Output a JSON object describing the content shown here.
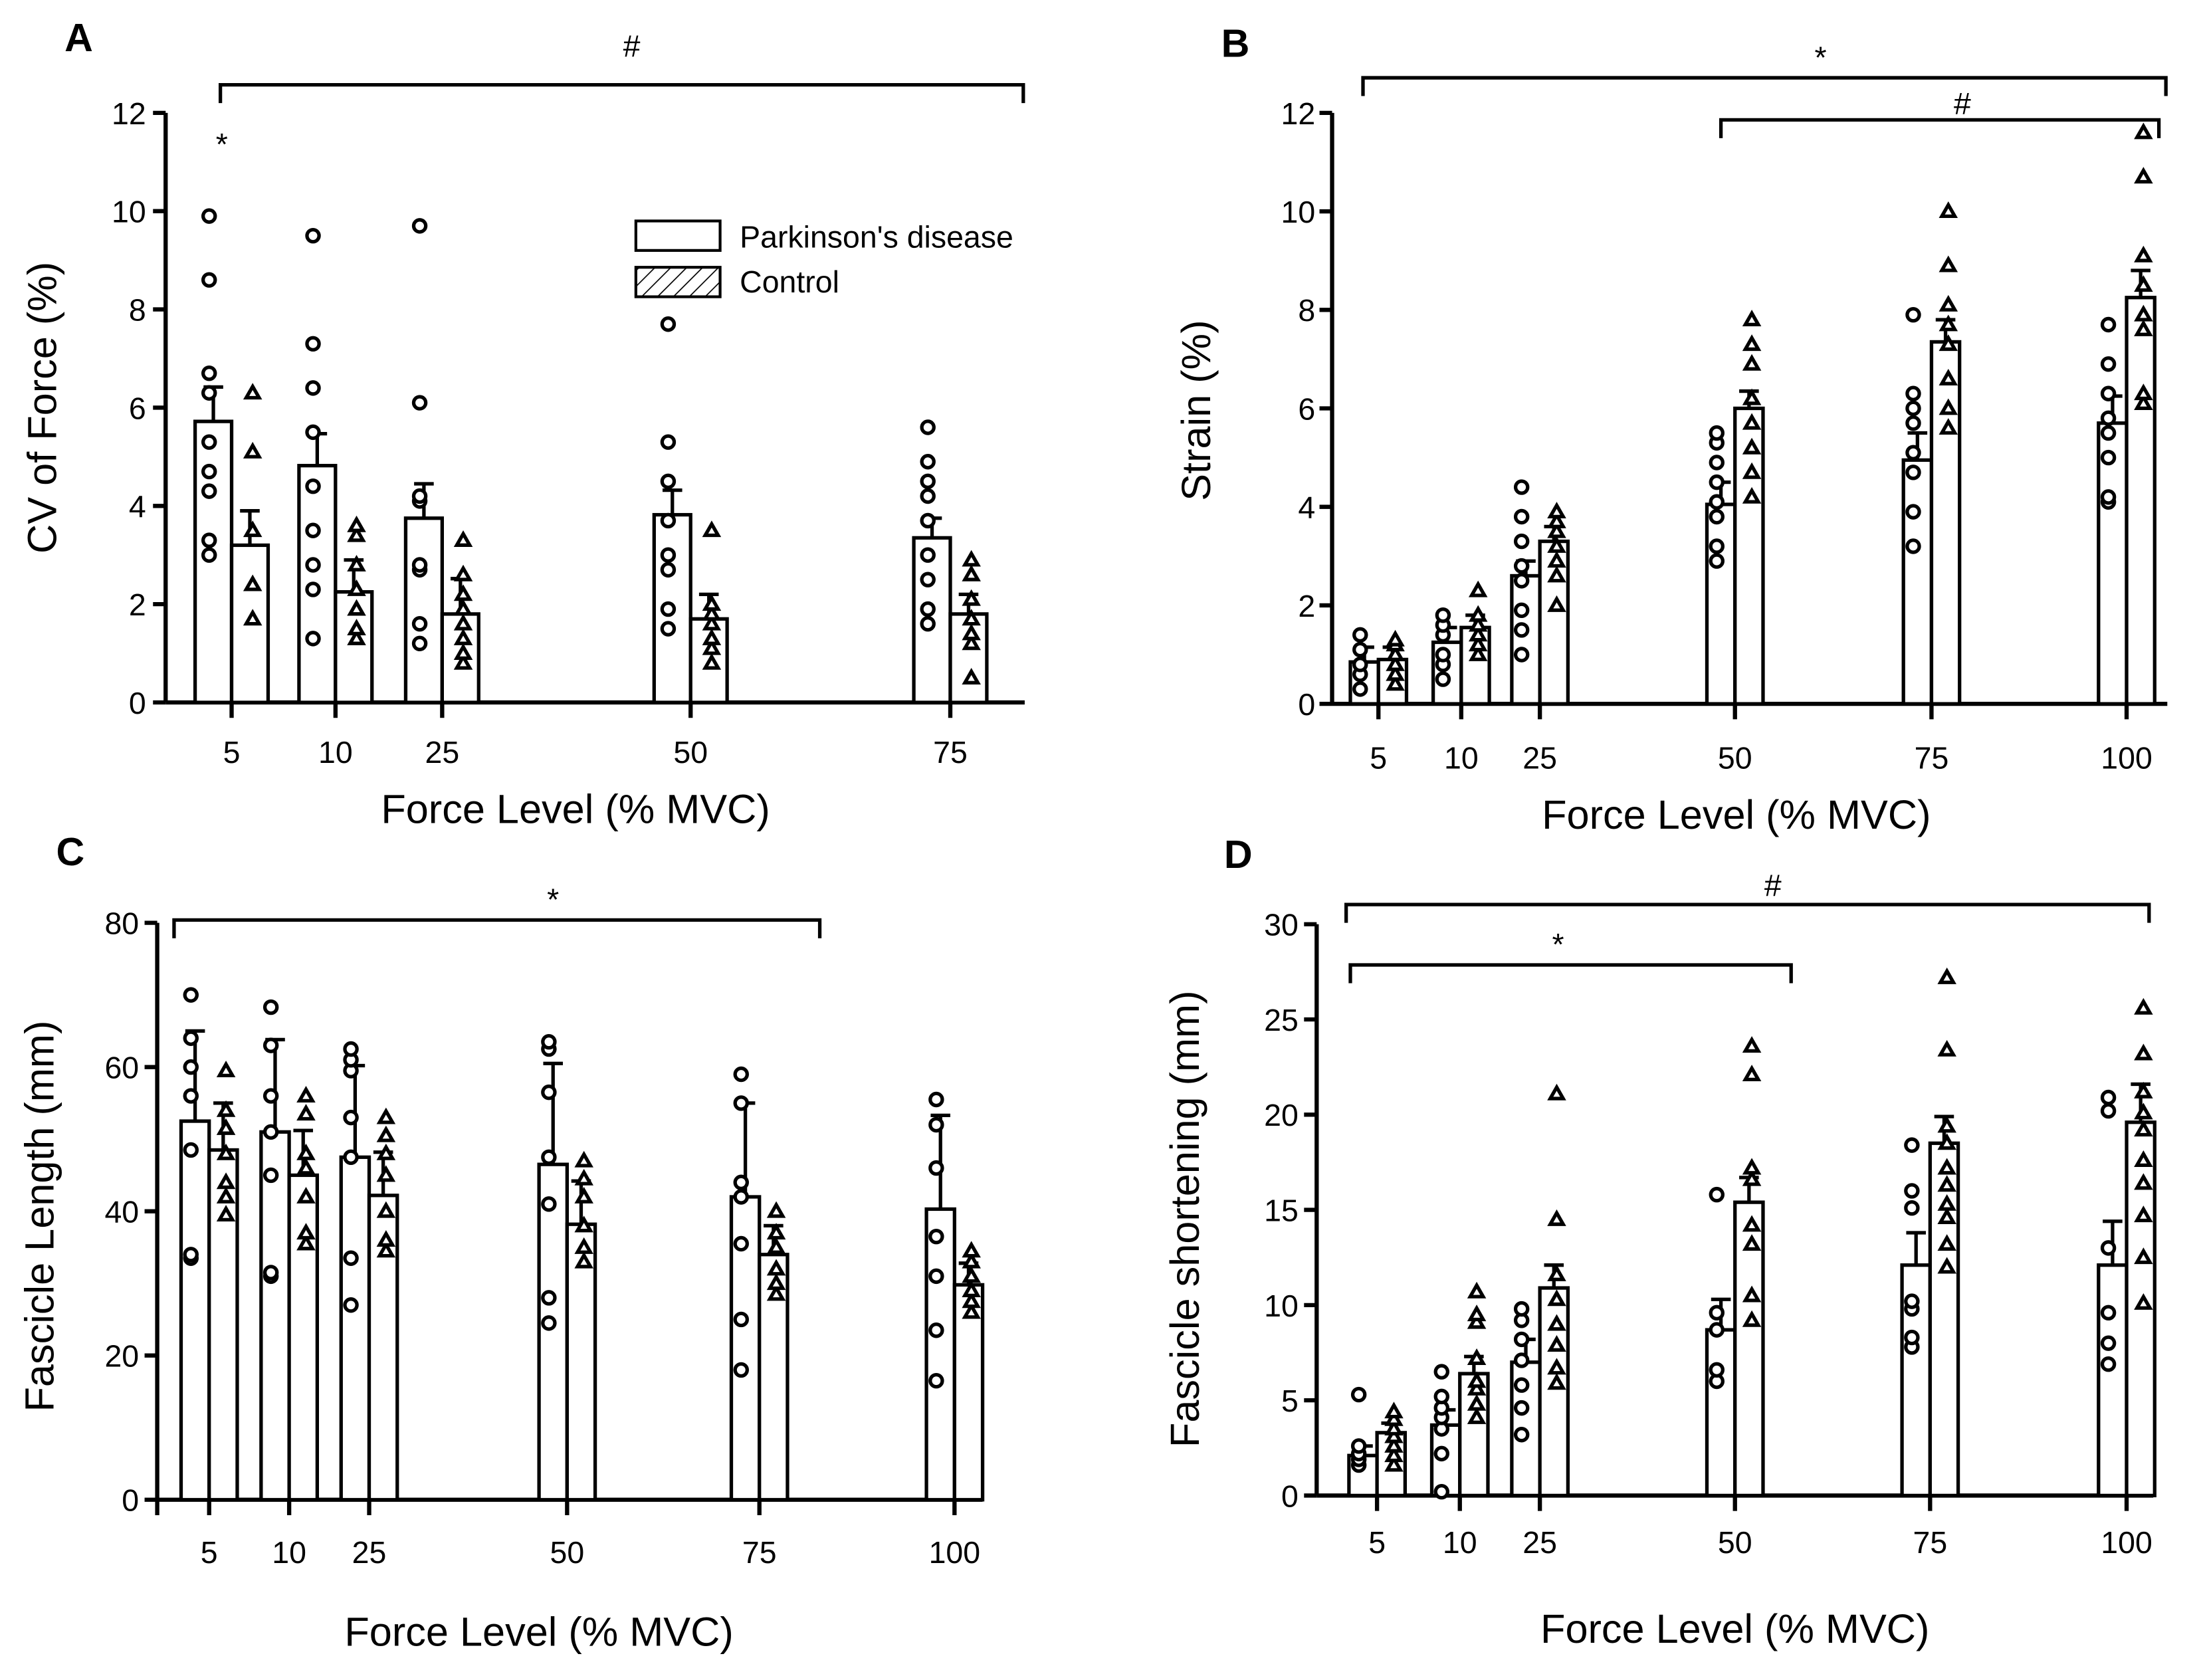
{
  "figure": {
    "xlabel": "Force Level (% MVC)"
  },
  "legend": {
    "pd": "Parkinson's disease",
    "control": "Control"
  },
  "chart_data": [
    {
      "type": "bar",
      "panel": "A",
      "ylabel": "CV of Force (%)",
      "xlabel": "Force Level (% MVC)",
      "ylim": [
        0,
        12
      ],
      "yticks": [
        0,
        2,
        4,
        6,
        8,
        10,
        12
      ],
      "categories": [
        "5",
        "10",
        "25",
        "50",
        "75"
      ],
      "series": [
        {
          "name": "Parkinson's disease",
          "values": [
            5.72,
            4.82,
            3.75,
            3.82,
            3.35
          ],
          "errors": [
            0.7,
            0.65,
            0.7,
            0.5,
            0.4
          ],
          "points": [
            [
              3.0,
              3.3,
              4.3,
              4.7,
              5.3,
              6.3,
              6.7,
              8.6,
              9.9
            ],
            [
              1.3,
              2.3,
              2.8,
              3.5,
              4.4,
              5.5,
              6.4,
              7.3,
              9.5
            ],
            [
              1.2,
              1.6,
              2.7,
              2.8,
              4.1,
              4.2,
              6.1,
              9.7
            ],
            [
              1.5,
              1.9,
              2.7,
              3.0,
              3.7,
              4.5,
              5.3,
              7.7
            ],
            [
              1.6,
              1.9,
              2.5,
              3.0,
              3.7,
              4.2,
              4.5,
              4.9,
              5.6
            ]
          ]
        },
        {
          "name": "Control",
          "values": [
            3.2,
            2.25,
            1.8,
            1.7,
            1.8
          ],
          "errors": [
            0.7,
            0.65,
            0.72,
            0.5,
            0.4
          ],
          "points": [
            [
              1.7,
              2.4,
              3.5,
              5.1,
              6.3
            ],
            [
              1.3,
              1.5,
              1.9,
              2.3,
              2.8,
              3.4,
              3.6
            ],
            [
              0.8,
              1.0,
              1.3,
              1.6,
              1.9,
              2.2,
              2.6,
              3.3
            ],
            [
              0.8,
              1.1,
              1.3,
              1.6,
              1.8,
              2.0,
              3.5
            ],
            [
              0.5,
              1.2,
              1.4,
              1.7,
              2.1,
              2.6,
              2.9
            ]
          ]
        }
      ],
      "annotations": [
        {
          "text": "#",
          "from": "5",
          "to": "75"
        },
        {
          "text": "*",
          "over": "5"
        }
      ]
    },
    {
      "type": "bar",
      "panel": "B",
      "ylabel": "Strain (%)",
      "xlabel": "Force Level (% MVC)",
      "ylim": [
        0,
        12
      ],
      "yticks": [
        0,
        2,
        4,
        6,
        8,
        10,
        12
      ],
      "categories": [
        "5",
        "10",
        "25",
        "50",
        "75",
        "100"
      ],
      "series": [
        {
          "name": "Parkinson's disease",
          "values": [
            0.85,
            1.25,
            2.6,
            4.05,
            4.95,
            5.7
          ],
          "errors": [
            0.3,
            0.3,
            0.3,
            0.45,
            0.55,
            0.55
          ],
          "points": [
            [
              0.3,
              0.6,
              0.8,
              1.1,
              1.4
            ],
            [
              0.5,
              0.8,
              1.0,
              1.4,
              1.6,
              1.8
            ],
            [
              1.0,
              1.5,
              1.9,
              2.5,
              2.8,
              3.3,
              3.8,
              4.4
            ],
            [
              2.9,
              3.2,
              3.8,
              4.1,
              4.5,
              4.9,
              5.3,
              5.5
            ],
            [
              3.2,
              3.9,
              4.7,
              5.1,
              5.7,
              6.0,
              6.3,
              7.9
            ],
            [
              4.1,
              4.2,
              5.0,
              5.5,
              5.8,
              6.3,
              6.9,
              7.7
            ]
          ]
        },
        {
          "name": "Control",
          "values": [
            0.9,
            1.55,
            3.3,
            6.0,
            7.35,
            8.25
          ],
          "errors": [
            0.25,
            0.25,
            0.3,
            0.35,
            0.45,
            0.55
          ],
          "points": [
            [
              0.4,
              0.6,
              0.8,
              1.0,
              1.2,
              1.3
            ],
            [
              1.0,
              1.2,
              1.4,
              1.6,
              1.8,
              2.3
            ],
            [
              2.0,
              2.6,
              2.9,
              3.2,
              3.5,
              3.7,
              3.9
            ],
            [
              4.2,
              4.7,
              5.2,
              5.7,
              6.2,
              6.9,
              7.3,
              7.8
            ],
            [
              5.6,
              6.0,
              6.6,
              7.3,
              7.7,
              8.1,
              8.9,
              10.0
            ],
            [
              6.1,
              6.3,
              7.6,
              7.9,
              8.5,
              9.1,
              10.7,
              11.6
            ]
          ]
        }
      ],
      "annotations": [
        {
          "text": "*",
          "from": "5",
          "to": "100"
        },
        {
          "text": "#",
          "from": "50",
          "to": "100"
        }
      ]
    },
    {
      "type": "bar",
      "panel": "C",
      "ylabel": "Fascicle Length (mm)",
      "xlabel": "Force Level (% MVC)",
      "ylim": [
        0,
        80
      ],
      "yticks": [
        0,
        20,
        40,
        60,
        80
      ],
      "categories": [
        "5",
        "10",
        "25",
        "50",
        "75",
        "100"
      ],
      "series": [
        {
          "name": "Parkinson's disease",
          "values": [
            52.5,
            51.0,
            47.5,
            46.5,
            42.0,
            40.3
          ],
          "errors": [
            12.5,
            12.8,
            12.7,
            14.0,
            13.0,
            13.0
          ],
          "points": [
            [
              33.5,
              34.0,
              48.5,
              56.0,
              60.0,
              64.0,
              70.0
            ],
            [
              31.0,
              31.5,
              45.0,
              51.0,
              56.0,
              63.0,
              68.3
            ],
            [
              27.0,
              33.5,
              47.5,
              53.0,
              59.5,
              61.0,
              62.5
            ],
            [
              24.5,
              28.0,
              41.0,
              47.5,
              56.5,
              62.5,
              63.5
            ],
            [
              18.0,
              25.0,
              35.5,
              42.0,
              44.0,
              55.0,
              59.0
            ],
            [
              16.5,
              23.5,
              31.0,
              36.5,
              46.0,
              52.0,
              55.5
            ]
          ]
        },
        {
          "name": "Control",
          "values": [
            48.5,
            45.0,
            42.2,
            38.2,
            34.0,
            29.8
          ],
          "errors": [
            6.5,
            6.2,
            6.0,
            6.0,
            4.0,
            3.0
          ],
          "points": [
            [
              39.5,
              42.0,
              44.0,
              48.0,
              51.5,
              54.0,
              59.5
            ],
            [
              35.5,
              37.0,
              42.0,
              46.0,
              48.0,
              53.5,
              56.0
            ],
            [
              34.5,
              36.0,
              40.0,
              45.0,
              48.0,
              50.5,
              53.0
            ],
            [
              33.0,
              35.0,
              38.0,
              42.0,
              44.5,
              47.0
            ],
            [
              28.5,
              30.0,
              32.0,
              35.0,
              37.0,
              40.0
            ],
            [
              26.0,
              27.5,
              29.0,
              31.0,
              33.0,
              34.5
            ]
          ]
        }
      ],
      "annotations": [
        {
          "text": "*",
          "from": "5",
          "to": "75"
        }
      ]
    },
    {
      "type": "bar",
      "panel": "D",
      "ylabel": "Fascicle shortening (mm)",
      "xlabel": "Force Level (% MVC)",
      "ylim": [
        0,
        30
      ],
      "yticks": [
        0,
        5,
        10,
        15,
        20,
        25,
        30
      ],
      "categories": [
        "5",
        "10",
        "25",
        "50",
        "75",
        "100"
      ],
      "series": [
        {
          "name": "Parkinson's disease",
          "values": [
            2.1,
            3.7,
            7.0,
            8.7,
            12.1,
            12.1
          ],
          "errors": [
            0.5,
            0.8,
            1.2,
            1.6,
            1.7,
            2.3
          ],
          "points": [
            [
              1.6,
              1.9,
              2.2,
              2.6,
              5.3
            ],
            [
              0.2,
              2.2,
              3.5,
              4.1,
              4.6,
              5.2,
              6.5
            ],
            [
              3.2,
              4.6,
              5.8,
              7.1,
              8.2,
              9.2,
              9.8
            ],
            [
              6.0,
              6.6,
              8.7,
              9.6,
              15.8
            ],
            [
              7.8,
              8.3,
              9.8,
              10.2,
              15.1,
              16.0,
              18.4
            ],
            [
              6.9,
              8.0,
              9.6,
              13.0,
              20.2,
              20.9
            ]
          ]
        },
        {
          "name": "Control",
          "values": [
            3.3,
            6.4,
            10.9,
            15.4,
            18.5,
            19.6
          ],
          "errors": [
            0.5,
            0.9,
            1.2,
            1.3,
            1.4,
            2.0
          ],
          "points": [
            [
              1.6,
              2.1,
              2.6,
              3.1,
              3.5,
              4.0,
              4.4
            ],
            [
              4.1,
              4.8,
              5.6,
              6.0,
              7.2,
              9.1,
              9.5,
              10.7
            ],
            [
              5.9,
              6.7,
              7.9,
              9.0,
              10.3,
              11.6,
              14.5,
              21.1
            ],
            [
              9.2,
              10.5,
              13.2,
              14.2,
              16.6,
              17.2,
              22.1,
              23.6
            ],
            [
              12.0,
              13.2,
              14.6,
              15.3,
              16.3,
              17.2,
              18.5,
              19.4,
              23.4,
              27.2
            ],
            [
              10.1,
              12.5,
              14.7,
              16.4,
              17.6,
              19.2,
              20.1,
              21.2,
              23.2,
              25.6
            ]
          ]
        }
      ],
      "annotations": [
        {
          "text": "#",
          "from": "5",
          "to": "100"
        },
        {
          "text": "*",
          "from": "5",
          "to": "50"
        }
      ]
    }
  ]
}
